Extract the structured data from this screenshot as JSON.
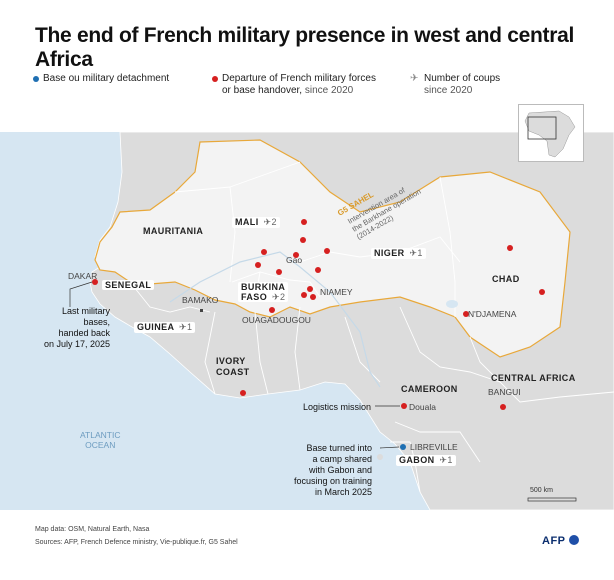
{
  "title": "The end of French military presence in west and central Africa",
  "legend": {
    "base": "Base ou military detachment",
    "departure_line1": "Departure of French military forces",
    "departure_line2": "or base handover,",
    "departure_since": "since 2020",
    "coups_line1": "Number of coups",
    "coups_line2": "since 2020"
  },
  "colors": {
    "base_dot": "#1f6fb2",
    "departure_dot": "#d62020",
    "g5_border": "#e8a83a",
    "sea": "#d6e6f2",
    "land": "#dcdcdc",
    "highlight_land": "#f2f2f2"
  },
  "map": {
    "g5_label": "G5 SAHEL",
    "g5_sub1": "Intervention area of",
    "g5_sub2": "the Barkhane operation",
    "g5_sub3": "(2014-2022)",
    "ocean_line1": "ATLANTIC",
    "ocean_line2": "OCEAN",
    "countries": {
      "mauritania": "MAURITANIA",
      "mali": "MALI",
      "mali_coups": "2",
      "niger": "NIGER",
      "niger_coups": "1",
      "chad": "CHAD",
      "senegal": "SENEGAL",
      "burkina_line1": "BURKINA",
      "burkina_line2": "FASO",
      "burkina_coups": "2",
      "guinea": "GUINEA",
      "guinea_coups": "1",
      "ivory_line1": "IVORY",
      "ivory_line2": "COAST",
      "cameroon": "CAMEROON",
      "central_africa": "CENTRAL AFRICA",
      "gabon": "GABON",
      "gabon_coups": "1"
    },
    "cities": {
      "dakar": "DAKAR",
      "bamako": "BAMAKO",
      "gao": "Gao",
      "niamey": "NIAMEY",
      "ouagadougou": "OUAGADOUGOU",
      "ndjamena": "N'DJAMENA",
      "douala": "Douala",
      "bangui": "BANGUI",
      "libreville": "LIBREVILLE"
    },
    "notes": {
      "senegal_note": [
        "Last military",
        "bases,",
        "handed back",
        "on July 17, 2025"
      ],
      "logistics": "Logistics mission",
      "gabon_note": [
        "Base turned into",
        "a camp shared",
        "with Gabon and",
        "focusing on training",
        "in March 2025"
      ]
    },
    "scale": "500 km"
  },
  "footer": {
    "line1": "Map data: OSM, Natural Earth, Nasa",
    "line2": "Sources: AFP, French Defence ministry, Vie-publique.fr, G5 Sahel"
  },
  "brand": "AFP"
}
